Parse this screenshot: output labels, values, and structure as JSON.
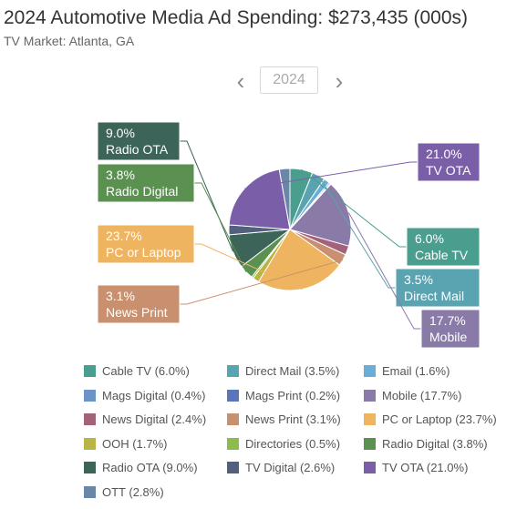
{
  "title": "2024 Automotive Media Ad Spending: $273,435 (000s)",
  "subtitle": "TV Market: Atlanta, GA",
  "year_selector": {
    "prev_icon": "chevron-left-icon",
    "next_icon": "chevron-right-icon",
    "prev_glyph": "‹",
    "next_glyph": "›",
    "year": "2024"
  },
  "chart_data": {
    "type": "pie",
    "slices": [
      {
        "name": "Cable TV",
        "value": 6.0,
        "label": "Cable TV (6.0%)",
        "color": "#4a9e8e"
      },
      {
        "name": "Direct Mail",
        "value": 3.5,
        "label": "Direct Mail (3.5%)",
        "color": "#5aa3b0"
      },
      {
        "name": "Email",
        "value": 1.6,
        "label": "Email (1.6%)",
        "color": "#6aaed6"
      },
      {
        "name": "Mags Digital",
        "value": 0.4,
        "label": "Mags Digital (0.4%)",
        "color": "#6a93c8"
      },
      {
        "name": "Mags Print",
        "value": 0.2,
        "label": "Mags Print (0.2%)",
        "color": "#5b76b8"
      },
      {
        "name": "Mobile",
        "value": 17.7,
        "label": "Mobile (17.7%)",
        "color": "#8a7aa8"
      },
      {
        "name": "News Digital",
        "value": 2.4,
        "label": "News Digital (2.4%)",
        "color": "#a3617a"
      },
      {
        "name": "News Print",
        "value": 3.1,
        "label": "News Print (3.1%)",
        "color": "#c99070"
      },
      {
        "name": "PC or Laptop",
        "value": 23.7,
        "label": "PC or Laptop (23.7%)",
        "color": "#efb460"
      },
      {
        "name": "OOH",
        "value": 1.7,
        "label": "OOH (1.7%)",
        "color": "#b8b446"
      },
      {
        "name": "Directories",
        "value": 0.5,
        "label": "Directories (0.5%)",
        "color": "#8cbc50"
      },
      {
        "name": "Radio Digital",
        "value": 3.8,
        "label": "Radio Digital (3.8%)",
        "color": "#5a9150"
      },
      {
        "name": "Radio OTA",
        "value": 9.0,
        "label": "Radio OTA (9.0%)",
        "color": "#3c6458"
      },
      {
        "name": "TV Digital",
        "value": 2.6,
        "label": "TV Digital (2.6%)",
        "color": "#52607e"
      },
      {
        "name": "TV OTA",
        "value": 21.0,
        "label": "TV OTA (21.0%)",
        "color": "#7b5ea8"
      },
      {
        "name": "OTT",
        "value": 2.8,
        "label": "OTT (2.8%)",
        "color": "#6b86a6"
      }
    ],
    "callouts": [
      {
        "slice": "Radio OTA",
        "pct": "9.0%",
        "name": "Radio OTA",
        "side": "left"
      },
      {
        "slice": "Radio Digital",
        "pct": "3.8%",
        "name": "Radio Digital",
        "side": "left"
      },
      {
        "slice": "PC or Laptop",
        "pct": "23.7%",
        "name": "PC or Laptop",
        "side": "left"
      },
      {
        "slice": "News Print",
        "pct": "3.1%",
        "name": "News Print",
        "side": "left"
      },
      {
        "slice": "TV OTA",
        "pct": "21.0%",
        "name": "TV OTA",
        "side": "right"
      },
      {
        "slice": "Cable TV",
        "pct": "6.0%",
        "name": "Cable TV",
        "side": "right"
      },
      {
        "slice": "Direct Mail",
        "pct": "3.5%",
        "name": "Direct Mail",
        "side": "right"
      },
      {
        "slice": "Mobile",
        "pct": "17.7%",
        "name": "Mobile",
        "side": "right"
      }
    ],
    "legend_position": "bottom"
  }
}
